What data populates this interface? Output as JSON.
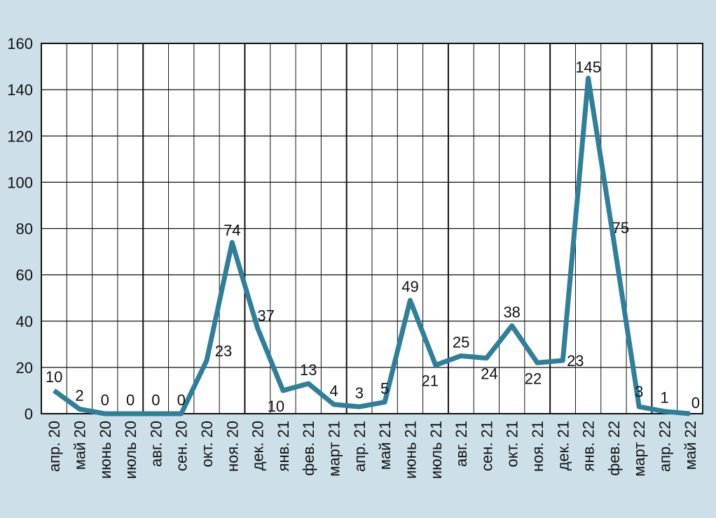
{
  "chart_data": {
    "type": "line",
    "categories": [
      "апр. 20",
      "май 20",
      "июнь 20",
      "июль 20",
      "авг. 20",
      "сен. 20",
      "окт. 20",
      "ноя. 20",
      "дек. 20",
      "янв. 21",
      "фев. 21",
      "март 21",
      "апр. 21",
      "май 21",
      "июнь 21",
      "июль 21",
      "авг. 21",
      "сен. 21",
      "окт. 21",
      "ноя. 21",
      "дек. 21",
      "янв. 22",
      "фев. 22",
      "март 22",
      "апр. 22",
      "май 22"
    ],
    "values": [
      10,
      2,
      0,
      0,
      0,
      0,
      23,
      74,
      37,
      10,
      13,
      4,
      3,
      5,
      49,
      21,
      25,
      24,
      38,
      22,
      23,
      145,
      75,
      3,
      1,
      0
    ],
    "color": "#2f7f9b",
    "ylim": [
      0,
      160
    ],
    "yticks": [
      0,
      20,
      40,
      60,
      80,
      100,
      120,
      140,
      160
    ],
    "grid": true
  }
}
